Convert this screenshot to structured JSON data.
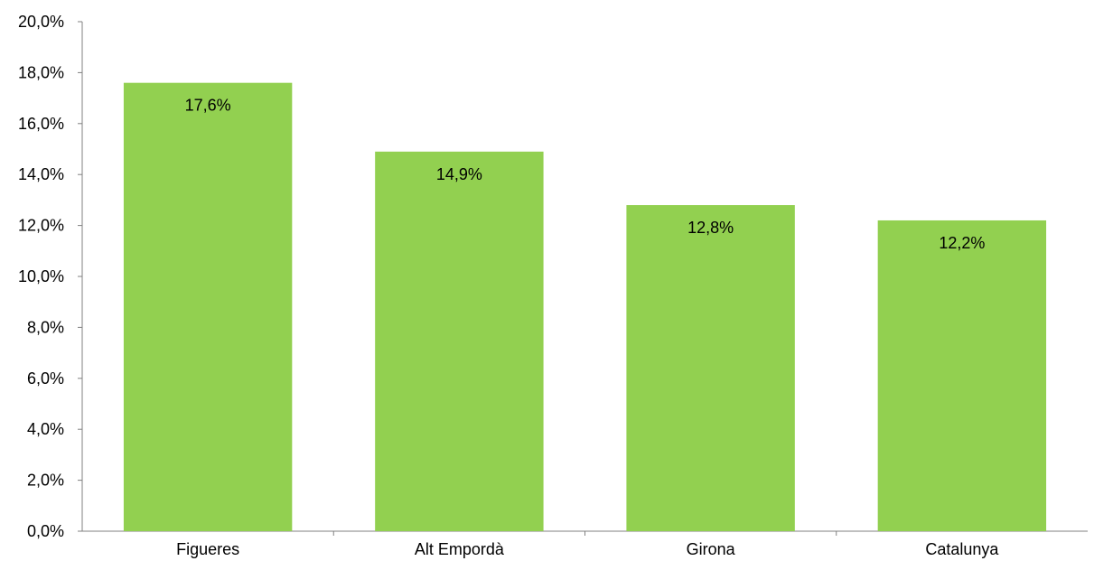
{
  "chart_data": {
    "type": "bar",
    "categories": [
      "Figueres",
      "Alt Empordà",
      "Girona",
      "Catalunya"
    ],
    "values": [
      17.6,
      14.9,
      12.8,
      12.2
    ],
    "data_labels": [
      "17,6%",
      "14,9%",
      "12,8%",
      "12,2%"
    ],
    "ylim": [
      0,
      20
    ],
    "y_ticks": [
      0,
      2,
      4,
      6,
      8,
      10,
      12,
      14,
      16,
      18,
      20
    ],
    "y_tick_labels": [
      "0,0%",
      "2,0%",
      "4,0%",
      "6,0%",
      "8,0%",
      "10,0%",
      "12,0%",
      "14,0%",
      "16,0%",
      "18,0%",
      "20,0%"
    ],
    "grid": false,
    "legend": "none",
    "bar_color": "#92d050"
  }
}
